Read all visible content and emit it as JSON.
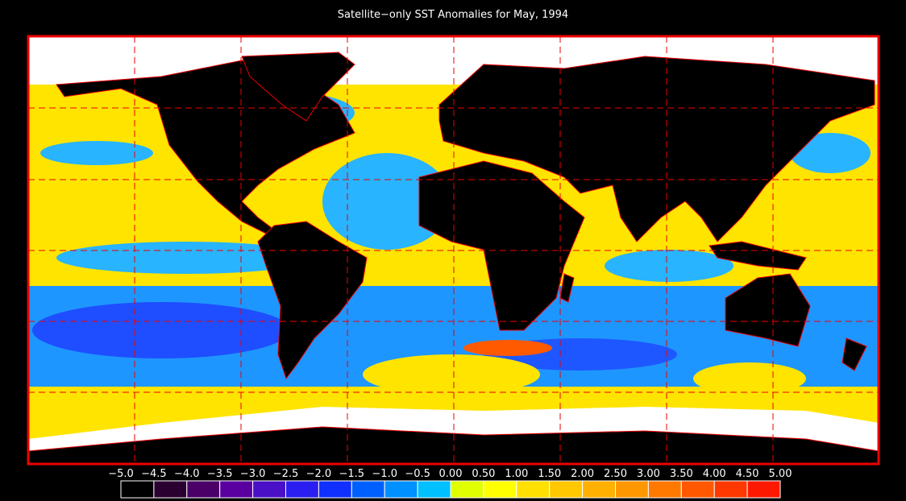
{
  "title": "Satellite−only SST Anomalies for May, 1994",
  "colorbar": {
    "ticks": [
      {
        "value": -5.0,
        "label": "−5.0"
      },
      {
        "value": -4.5,
        "label": "−4.5"
      },
      {
        "value": -4.0,
        "label": "−4.0"
      },
      {
        "value": -3.5,
        "label": "−3.5"
      },
      {
        "value": -3.0,
        "label": "−3.0"
      },
      {
        "value": -2.5,
        "label": "−2.5"
      },
      {
        "value": -2.0,
        "label": "−2.0"
      },
      {
        "value": -1.5,
        "label": "−1.5"
      },
      {
        "value": -1.0,
        "label": "−1.0"
      },
      {
        "value": -0.5,
        "label": "−0.5"
      },
      {
        "value": 0,
        "label": "0.00"
      },
      {
        "value": 0.5,
        "label": "0.50"
      },
      {
        "value": 1.0,
        "label": "1.00"
      },
      {
        "value": 1.5,
        "label": "1.50"
      },
      {
        "value": 2.0,
        "label": "2.00"
      },
      {
        "value": 2.5,
        "label": "2.50"
      },
      {
        "value": 3.0,
        "label": "3.00"
      },
      {
        "value": 3.5,
        "label": "3.50"
      },
      {
        "value": 4.0,
        "label": "4.00"
      },
      {
        "value": 4.5,
        "label": "4.50"
      },
      {
        "value": 5.0,
        "label": "5.00"
      }
    ],
    "colors": [
      "#000000",
      "#2a0030",
      "#4b0068",
      "#5a00a0",
      "#4a10c8",
      "#2a1ef0",
      "#1030ff",
      "#0060ff",
      "#0090ff",
      "#00c0ff",
      "#e0ff00",
      "#ffff00",
      "#ffe000",
      "#ffc800",
      "#ffb000",
      "#ff9800",
      "#ff7800",
      "#ff5800",
      "#ff3800",
      "#ff1800"
    ]
  }
}
